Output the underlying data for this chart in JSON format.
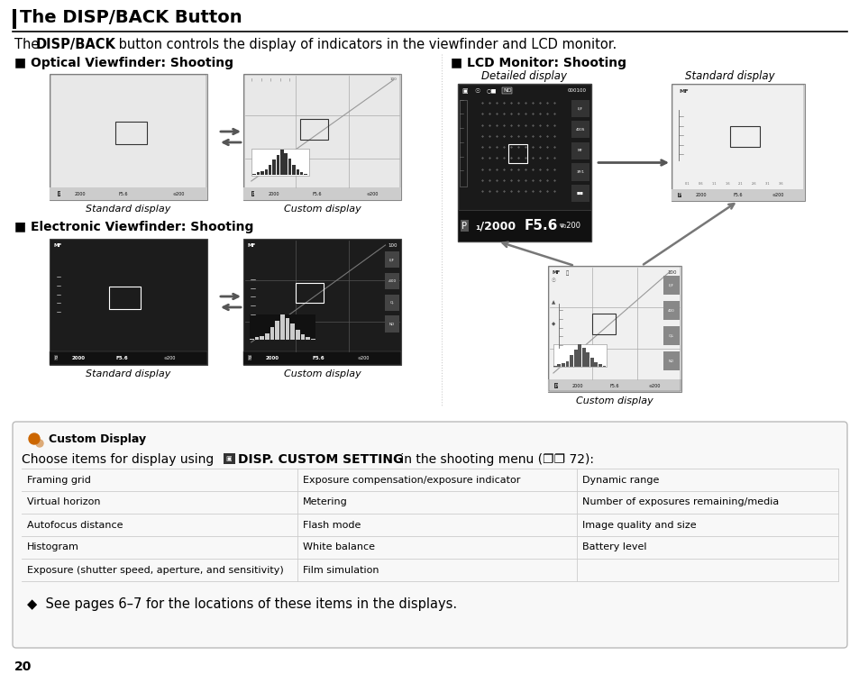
{
  "title": "The DISP/BACK Button",
  "section1_title": "■ Optical Viewfinder: Shooting",
  "section2_title": "■ Electronic Viewfinder: Shooting",
  "section3_title": "■ LCD Monitor: Shooting",
  "std_label": "Standard display",
  "custom_label": "Custom display",
  "detailed_label": "Detailed display",
  "standard_label": "Standard display",
  "box_title": "Custom Display",
  "table_rows": [
    [
      "Framing grid",
      "Exposure compensation/exposure indicator",
      "Dynamic range"
    ],
    [
      "Virtual horizon",
      "Metering",
      "Number of exposures remaining/media"
    ],
    [
      "Autofocus distance",
      "Flash mode",
      "Image quality and size"
    ],
    [
      "Histogram",
      "White balance",
      "Battery level"
    ],
    [
      "Exposure (shutter speed, aperture, and sensitivity)",
      "Film simulation",
      ""
    ]
  ],
  "see_pages": "◆  See pages 6–7 for the locations of these items in the displays.",
  "page_number": "20",
  "bg_color": "#ffffff",
  "box_bg": "#f8f8f8",
  "table_line_color": "#cccccc",
  "divider_color": "#aaaaaa"
}
